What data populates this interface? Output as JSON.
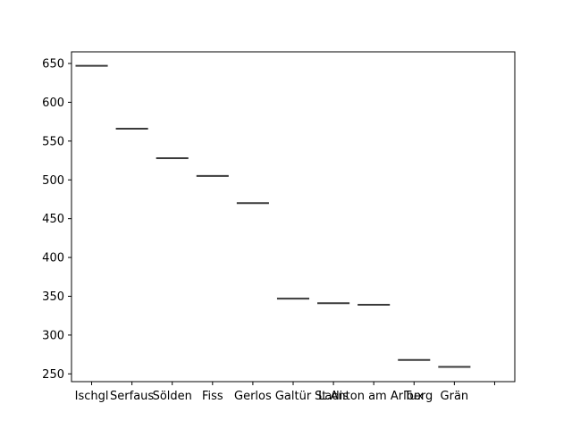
{
  "chart_data": {
    "type": "box",
    "title": "",
    "xlabel": "",
    "ylabel": "",
    "categories": [
      "Ischgl",
      "Serfaus",
      "Sölden",
      "Fiss",
      "Gerlos",
      "Galtür",
      "Ladis",
      "St.Anton am Arlberg",
      "Tux",
      "Grän"
    ],
    "x_tick_labels": [
      "Ischgl",
      "Serfaus",
      "Sölden",
      "Fiss",
      "Gerlos",
      "Galtür",
      "Ladis",
      "St.Anton am Arlberg",
      "Tux",
      "Grän",
      ""
    ],
    "values": [
      647,
      566,
      528,
      505,
      470,
      347,
      341,
      339,
      268,
      259
    ],
    "ylim": [
      240,
      665
    ],
    "yticks": [
      250,
      300,
      350,
      400,
      450,
      500,
      550,
      600,
      650
    ],
    "grid": false,
    "colors": {
      "median": "#3a3a3a",
      "axis": "#000000"
    }
  }
}
